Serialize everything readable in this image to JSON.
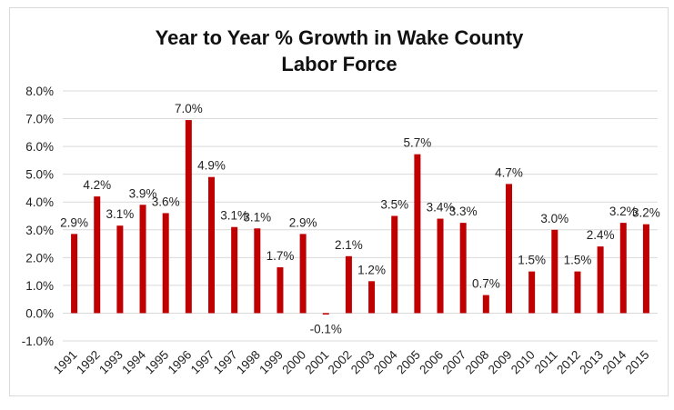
{
  "chart_data": {
    "type": "bar",
    "title_lines": [
      "Year to Year % Growth in Wake County",
      "Labor Force"
    ],
    "xlabel": "",
    "ylabel": "",
    "ylim": [
      -1.0,
      8.0
    ],
    "y_ticks": [
      -1.0,
      0.0,
      1.0,
      2.0,
      3.0,
      4.0,
      5.0,
      6.0,
      7.0,
      8.0
    ],
    "y_tick_labels": [
      "-1.0%",
      "0.0%",
      "1.0%",
      "2.0%",
      "3.0%",
      "4.0%",
      "5.0%",
      "6.0%",
      "7.0%",
      "8.0%"
    ],
    "grid": true,
    "legend": "none",
    "bar_color": "#c00000",
    "categories": [
      "1991",
      "1992",
      "1993",
      "1994",
      "1995",
      "1996",
      "1997",
      "1997",
      "1998",
      "1999",
      "2000",
      "2001",
      "2002",
      "2003",
      "2004",
      "2005",
      "2006",
      "2007",
      "2008",
      "2009",
      "2010",
      "2011",
      "2012",
      "2013",
      "2014",
      "2015"
    ],
    "values": [
      2.85,
      4.2,
      3.15,
      3.9,
      3.6,
      6.95,
      4.9,
      3.1,
      3.05,
      1.65,
      2.85,
      -0.05,
      2.05,
      1.15,
      3.5,
      5.72,
      3.4,
      3.25,
      0.65,
      4.65,
      1.5,
      3.0,
      1.5,
      2.4,
      3.25,
      3.2
    ],
    "data_labels": [
      "2.9%",
      "4.2%",
      "3.1%",
      "3.9%",
      "3.6%",
      "7.0%",
      "4.9%",
      "3.1%",
      "3.1%",
      "1.7%",
      "2.9%",
      "-0.1%",
      "2.1%",
      "1.2%",
      "3.5%",
      "5.7%",
      "3.4%",
      "3.3%",
      "0.7%",
      "4.7%",
      "1.5%",
      "3.0%",
      "1.5%",
      "2.4%",
      "3.2%",
      "3.2%"
    ]
  }
}
